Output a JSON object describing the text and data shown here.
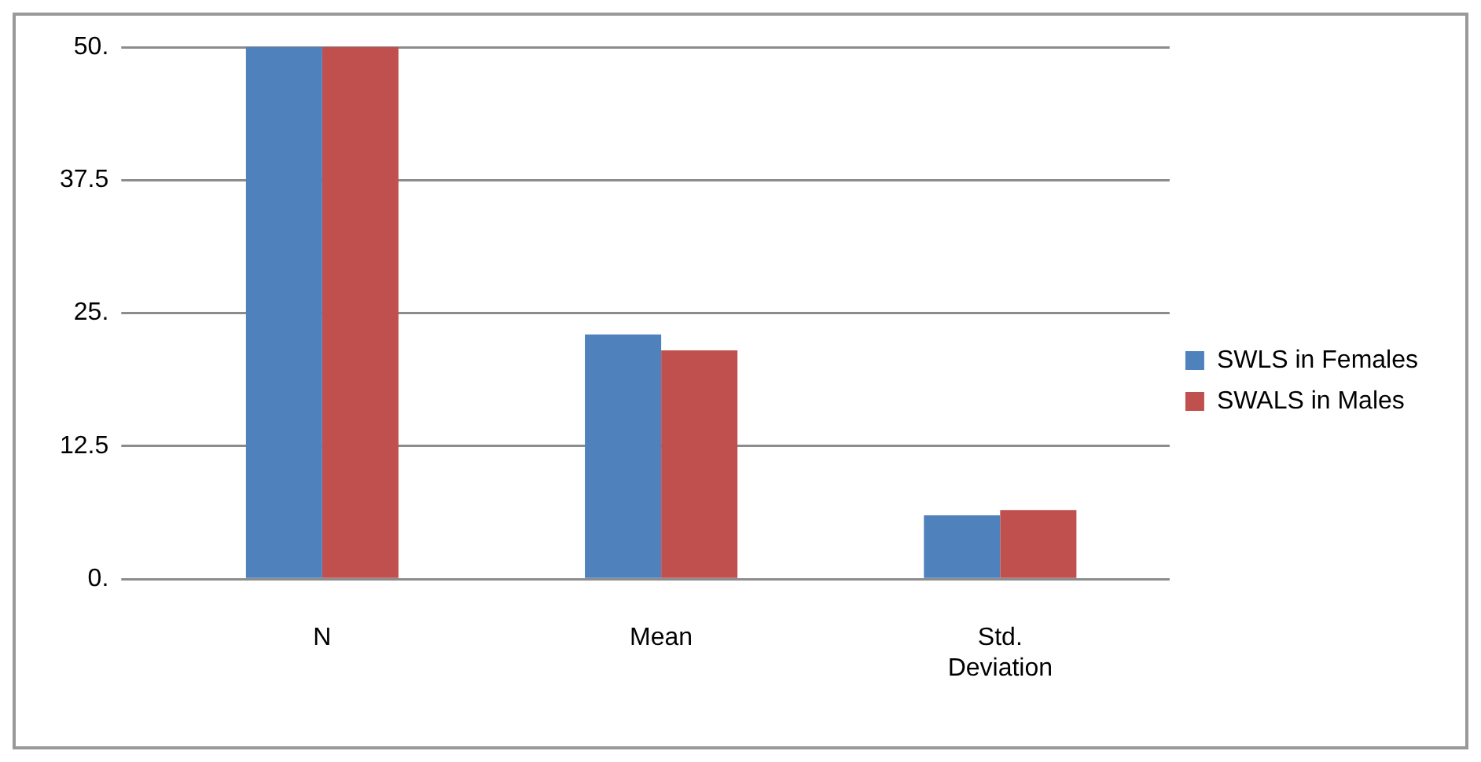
{
  "chart_data": {
    "type": "bar",
    "categories": [
      "N",
      "Mean",
      "Std. Deviation"
    ],
    "series": [
      {
        "name": "SWLS in Females",
        "color": "#4f81bd",
        "values": [
          50,
          23,
          6
        ]
      },
      {
        "name": "SWALS in Males",
        "color": "#c0504d",
        "values": [
          50,
          21.5,
          6.5
        ]
      }
    ],
    "ylim": [
      0,
      50
    ],
    "yticks": [
      {
        "value": 0,
        "label": "0."
      },
      {
        "value": 12.5,
        "label": "12.5"
      },
      {
        "value": 25,
        "label": "25."
      },
      {
        "value": 37.5,
        "label": "37.5"
      },
      {
        "value": 50,
        "label": "50."
      }
    ],
    "grid": "y",
    "legend": "right"
  }
}
